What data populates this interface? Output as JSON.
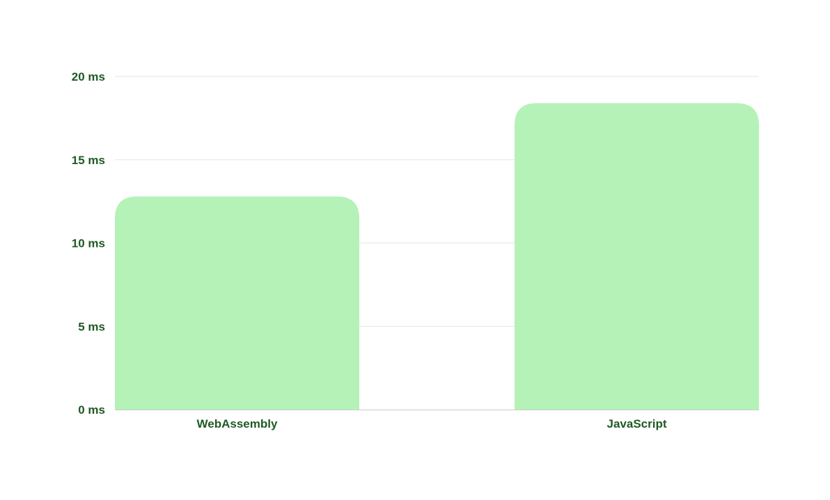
{
  "colors": {
    "bar": "#b4f2b8",
    "text": "#1f5a24",
    "grid": "#e6e6e6",
    "axis": "#cccccc"
  },
  "chart_data": {
    "type": "bar",
    "title": "",
    "xlabel": "",
    "ylabel": "",
    "categories": [
      "WebAssembly",
      "JavaScript"
    ],
    "values": [
      12.8,
      18.4
    ],
    "ylim": [
      0,
      20
    ],
    "y_ticks": [
      {
        "value": 0,
        "label": "0 ms"
      },
      {
        "value": 5,
        "label": "5 ms"
      },
      {
        "value": 10,
        "label": "10 ms"
      },
      {
        "value": 15,
        "label": "15 ms"
      },
      {
        "value": 20,
        "label": "20 ms"
      }
    ],
    "grid": true,
    "legend": "none"
  }
}
